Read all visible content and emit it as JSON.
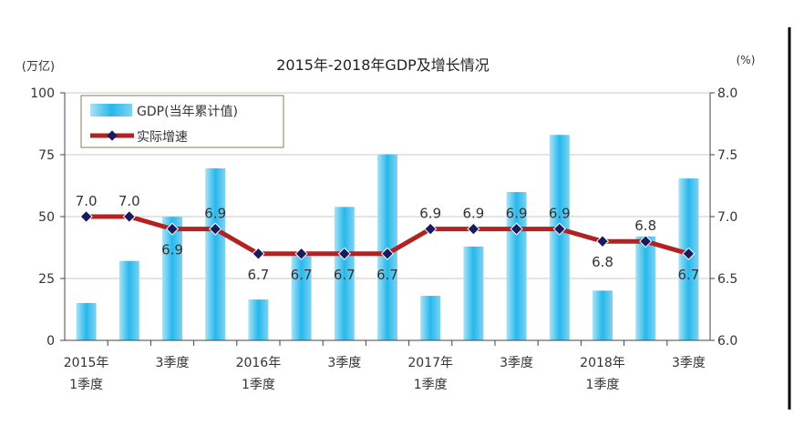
{
  "chart_data": {
    "type": "bar+line",
    "title": "2015年-2018年GDP及增长情况",
    "ylabel_left": "(万亿)",
    "ylabel_right": "(%)",
    "ylim_left": [
      0,
      100
    ],
    "ylim_right": [
      6.0,
      8.0
    ],
    "yticks_left": [
      "0",
      "25",
      "50",
      "75",
      "100"
    ],
    "yticks_right": [
      "6.0",
      "6.5",
      "7.0",
      "7.5",
      "8.0"
    ],
    "grid": true,
    "legend_position": "top-left",
    "categories": [
      "2015Q1",
      "2015Q2",
      "2015Q3",
      "2015Q4",
      "2016Q1",
      "2016Q2",
      "2016Q3",
      "2016Q4",
      "2017Q1",
      "2017Q2",
      "2017Q3",
      "2017Q4",
      "2018Q1",
      "2018Q2",
      "2018Q3"
    ],
    "xtick_labels": [
      {
        "index": 0,
        "line1": "2015年",
        "line2": "1季度"
      },
      {
        "index": 2,
        "line1": "3季度",
        "line2": ""
      },
      {
        "index": 4,
        "line1": "2016年",
        "line2": "1季度"
      },
      {
        "index": 6,
        "line1": "3季度",
        "line2": ""
      },
      {
        "index": 8,
        "line1": "2017年",
        "line2": "1季度"
      },
      {
        "index": 10,
        "line1": "3季度",
        "line2": ""
      },
      {
        "index": 12,
        "line1": "2018年",
        "line2": "1季度"
      },
      {
        "index": 14,
        "line1": "3季度",
        "line2": ""
      }
    ],
    "series": [
      {
        "name": "GDP(当年累计值)",
        "type": "bar",
        "axis": "left",
        "color": "#3ec3ee",
        "values": [
          15.1,
          32.1,
          49.9,
          69.5,
          16.5,
          34.0,
          53.9,
          75.2,
          18.0,
          37.9,
          59.9,
          83.0,
          20.1,
          42.0,
          65.4
        ]
      },
      {
        "name": "实际增速",
        "type": "line",
        "axis": "right",
        "color": "#b22222",
        "marker_color": "#1a1a5e",
        "values": [
          7.0,
          7.0,
          6.9,
          6.9,
          6.7,
          6.7,
          6.7,
          6.7,
          6.9,
          6.9,
          6.9,
          6.9,
          6.8,
          6.8,
          6.7
        ],
        "labels": [
          "7.0",
          "7.0",
          "6.9",
          "6.9",
          "6.7",
          "6.7",
          "6.7",
          "6.7",
          "6.9",
          "6.9",
          "6.9",
          "6.9",
          "6.8",
          "6.8",
          "6.7"
        ]
      }
    ]
  }
}
